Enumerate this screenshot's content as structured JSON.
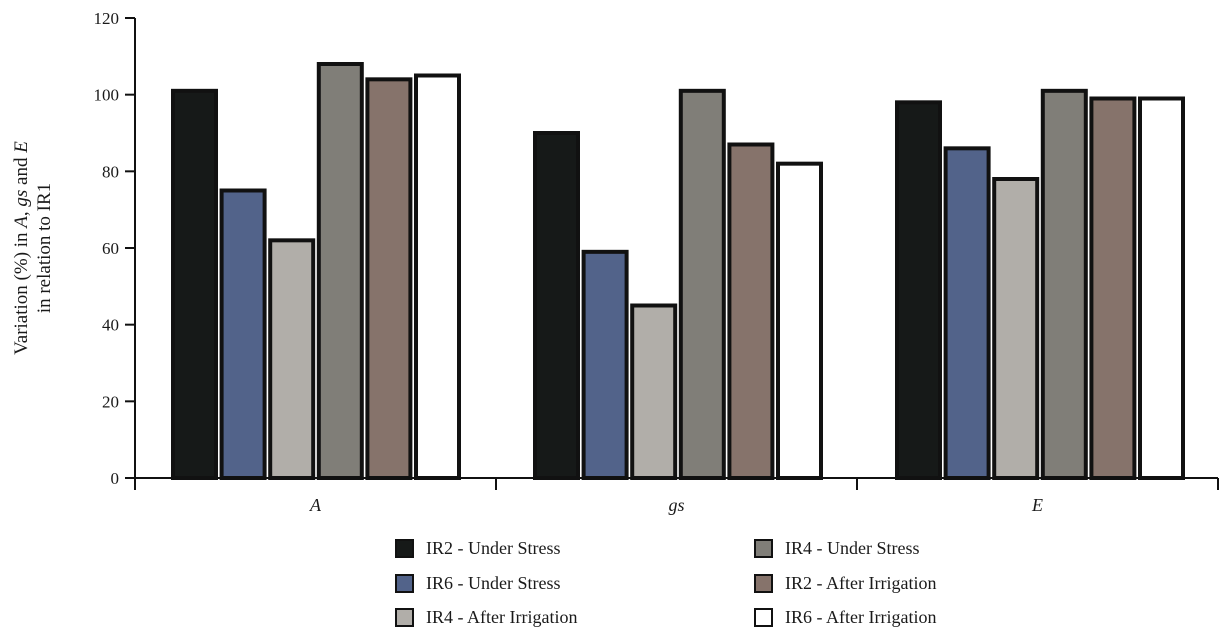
{
  "chart_data": {
    "type": "bar",
    "categories": [
      "A",
      "gs",
      "E"
    ],
    "ylabel_line1_parts": [
      "Variation (%) in ",
      "A",
      ", ",
      "gs",
      " and ",
      "E"
    ],
    "ylabel_line2": "in relation to IR1",
    "ylim": [
      0,
      120
    ],
    "yticks": [
      "0",
      "20",
      "40",
      "60",
      "80",
      "100",
      "120"
    ],
    "grid": false,
    "legend_position": "bottom",
    "series": [
      {
        "name": "IR2 - Under Stress",
        "color": "#161918",
        "values": [
          101,
          90,
          98
        ]
      },
      {
        "name": "IR6 - Under Stress",
        "color": "#52638a",
        "values": [
          75,
          59,
          86
        ]
      },
      {
        "name": "IR4 - After Irrigation",
        "color": "#b1aea9",
        "values": [
          62,
          45,
          78
        ]
      },
      {
        "name": "IR4 - Under Stress",
        "color": "#807e78",
        "values": [
          108,
          101,
          101
        ]
      },
      {
        "name": "IR2 - After Irrigation",
        "color": "#86736b",
        "values": [
          104,
          87,
          99
        ]
      },
      {
        "name": "IR6 - After Irrigation",
        "color": "#ffffff",
        "values": [
          105,
          82,
          99
        ]
      }
    ],
    "legend_order": [
      [
        "IR2 - Under Stress",
        "IR4 - Under Stress"
      ],
      [
        "IR6 - Under Stress",
        "IR2 - After Irrigation"
      ],
      [
        "IR4 - After Irrigation",
        "IR6 - After Irrigation"
      ]
    ]
  }
}
